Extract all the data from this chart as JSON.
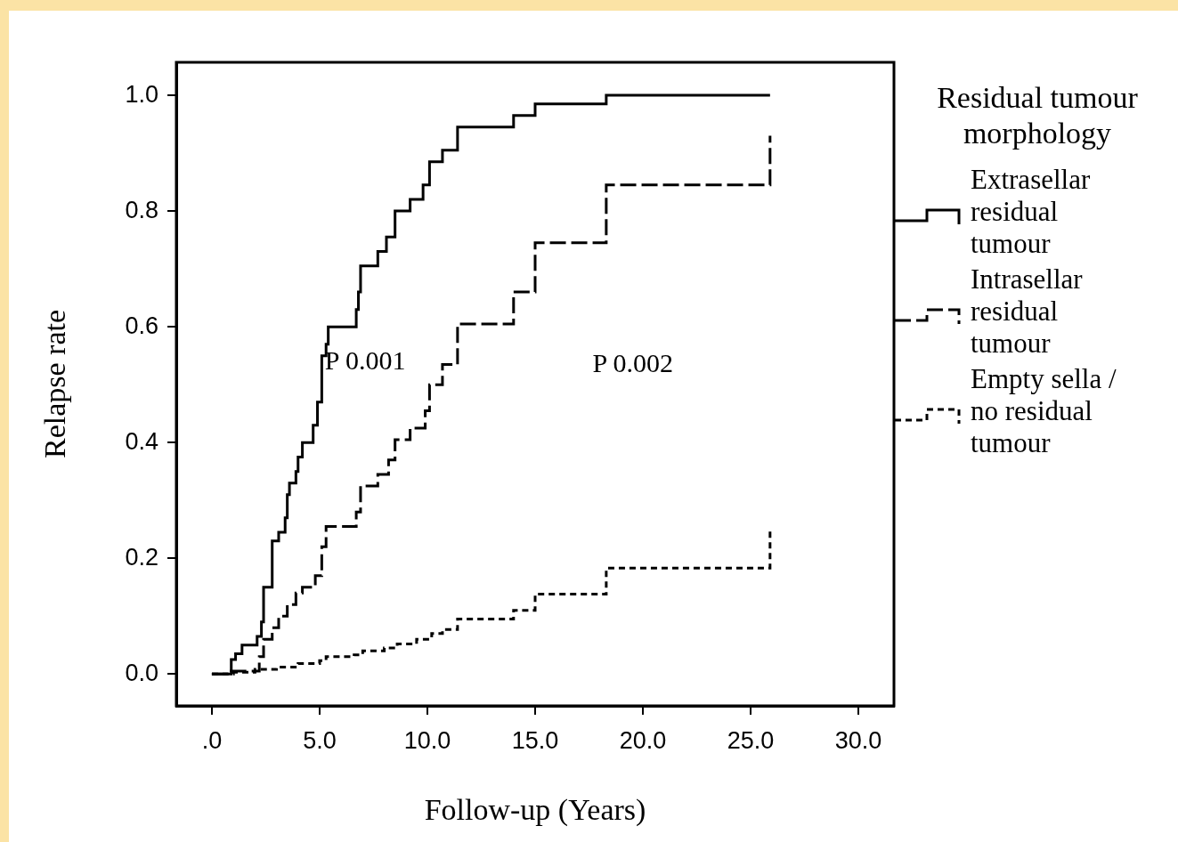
{
  "chart_data": {
    "type": "step",
    "xlabel": "Follow-up (Years)",
    "ylabel": "Relapse rate",
    "legend_title": "Residual tumour morphology",
    "legend": "right",
    "grid": false,
    "marker": "none",
    "xlim": [
      -1.65,
      31.65
    ],
    "ylim": [
      -0.055,
      1.057
    ],
    "xticks": [
      {
        "value": 0,
        "label": ".0"
      },
      {
        "value": 5,
        "label": "5.0"
      },
      {
        "value": 10,
        "label": "10.0"
      },
      {
        "value": 15,
        "label": "15.0"
      },
      {
        "value": 20,
        "label": "20.0"
      },
      {
        "value": 25,
        "label": "25.0"
      },
      {
        "value": 30,
        "label": "30.0"
      }
    ],
    "yticks": [
      {
        "value": 0,
        "label": "0.0"
      },
      {
        "value": 0.2,
        "label": "0.2"
      },
      {
        "value": 0.4,
        "label": "0.4"
      },
      {
        "value": 0.6,
        "label": "0.6"
      },
      {
        "value": 0.8,
        "label": "0.8"
      },
      {
        "value": 1,
        "label": "1.0"
      }
    ],
    "series": [
      {
        "name": "Extrasellar residual tumour",
        "color": "#000000",
        "line_style": "solid",
        "x": [
          0,
          0.9,
          1.1,
          1.4,
          2.1,
          2.3,
          2.4,
          2.8,
          3.1,
          3.4,
          3.5,
          3.6,
          3.9,
          4.0,
          4.2,
          4.7,
          4.9,
          5.1,
          5.3,
          5.4,
          6.7,
          6.8,
          6.9,
          7.7,
          8.1,
          8.5,
          9.2,
          9.8,
          10.1,
          10.7,
          11.4,
          14.0,
          15.0,
          18.3,
          25.9
        ],
        "values": [
          0,
          0.025,
          0.035,
          0.05,
          0.065,
          0.09,
          0.15,
          0.23,
          0.245,
          0.27,
          0.31,
          0.33,
          0.35,
          0.375,
          0.4,
          0.43,
          0.47,
          0.55,
          0.57,
          0.6,
          0.63,
          0.66,
          0.705,
          0.73,
          0.755,
          0.8,
          0.82,
          0.845,
          0.885,
          0.905,
          0.945,
          0.965,
          0.985,
          1.0,
          1.0
        ]
      },
      {
        "name": "Intrasellar residual tumour",
        "color": "#000000",
        "line_style": "dashed",
        "x": [
          0,
          0.9,
          2.2,
          2.4,
          2.8,
          3.1,
          3.5,
          3.9,
          4.2,
          4.8,
          5.1,
          5.3,
          6.7,
          6.9,
          7.7,
          8.2,
          8.5,
          9.2,
          9.9,
          10.1,
          10.7,
          11.4,
          14.0,
          15.0,
          18.3,
          25.9,
          25.9
        ],
        "values": [
          0,
          0.005,
          0.03,
          0.06,
          0.08,
          0.1,
          0.12,
          0.14,
          0.15,
          0.17,
          0.22,
          0.255,
          0.28,
          0.325,
          0.345,
          0.37,
          0.405,
          0.425,
          0.455,
          0.5,
          0.535,
          0.605,
          0.66,
          0.745,
          0.845,
          0.845,
          0.93
        ]
      },
      {
        "name": "Empty sella / no residual tumour",
        "color": "#000000",
        "line_style": "dotted",
        "x": [
          0,
          1,
          2,
          3,
          4,
          5,
          5.3,
          6.6,
          7,
          8,
          8.6,
          9.5,
          10.2,
          10.7,
          11.4,
          14.0,
          15.0,
          18.3,
          25.9,
          25.9
        ],
        "values": [
          0,
          0.003,
          0.008,
          0.012,
          0.018,
          0.023,
          0.03,
          0.033,
          0.04,
          0.045,
          0.052,
          0.06,
          0.07,
          0.077,
          0.095,
          0.11,
          0.138,
          0.183,
          0.183,
          0.25
        ]
      }
    ],
    "annotations": [
      "P 0.001",
      "P 0.002"
    ]
  }
}
